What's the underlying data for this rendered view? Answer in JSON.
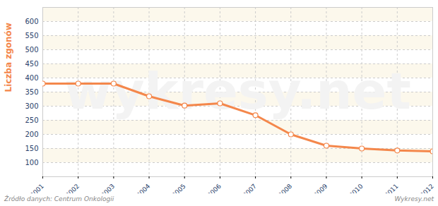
{
  "chart_data": {
    "type": "line",
    "y_label": "Liczba zgonów",
    "x": [
      2001,
      2002,
      2003,
      2004,
      2005,
      2006,
      2007,
      2008,
      2009,
      2010,
      2011,
      2012
    ],
    "values": [
      380,
      380,
      380,
      335,
      302,
      310,
      268,
      200,
      160,
      150,
      143,
      140
    ],
    "color": "#f4874b",
    "marker": "circle",
    "xlim": [
      2001,
      2012
    ],
    "xticks": [
      2001,
      2002,
      2003,
      2004,
      2005,
      2006,
      2007,
      2008,
      2009,
      2010,
      2011,
      2012
    ],
    "ylim": [
      50,
      650
    ],
    "yticks": [
      100,
      150,
      200,
      250,
      300,
      350,
      400,
      450,
      500,
      550,
      600
    ],
    "grid": true,
    "source": "Źródło danych: Centrum Onkologii",
    "credit": "Wykresy.net",
    "watermark": "wykresy.net"
  }
}
